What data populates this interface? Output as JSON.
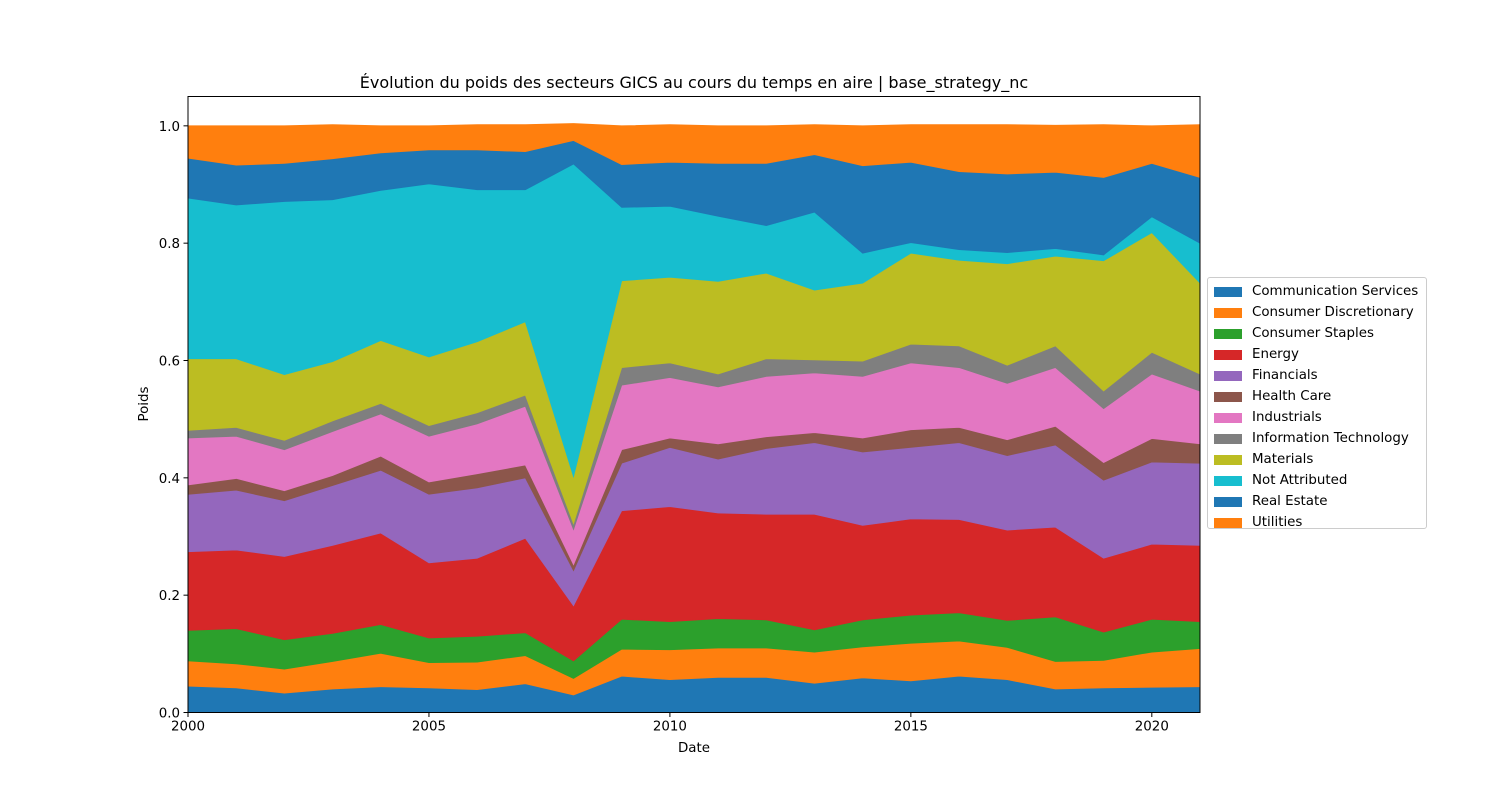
{
  "chart_data": {
    "type": "area",
    "stacked": true,
    "title": "Évolution du poids des secteurs GICS au cours du temps en aire | base_strategy_nc",
    "xlabel": "Date",
    "ylabel": "Poids",
    "xlim": [
      2000,
      2021
    ],
    "ylim": [
      0.0,
      1.05
    ],
    "xticks": [
      2000,
      2005,
      2010,
      2015,
      2020
    ],
    "xtick_labels": [
      "2000",
      "2005",
      "2010",
      "2015",
      "2020"
    ],
    "yticks": [
      0.0,
      0.2,
      0.4,
      0.6,
      0.8,
      1.0
    ],
    "ytick_labels": [
      "0.0",
      "0.2",
      "0.4",
      "0.6",
      "0.8",
      "1.0"
    ],
    "grid": false,
    "legend_position": "right, outside plot",
    "x": [
      2000,
      2001,
      2002,
      2003,
      2004,
      2005,
      2006,
      2007,
      2008,
      2009,
      2010,
      2011,
      2012,
      2013,
      2014,
      2015,
      2016,
      2017,
      2018,
      2019,
      2020,
      2021
    ],
    "series": [
      {
        "name": "Communication Services",
        "color": "#1f77b4",
        "values": [
          0.045,
          0.042,
          0.033,
          0.04,
          0.044,
          0.042,
          0.039,
          0.049,
          0.03,
          0.062,
          0.056,
          0.06,
          0.06,
          0.05,
          0.059,
          0.054,
          0.062,
          0.056,
          0.04,
          0.042,
          0.043,
          0.044
        ]
      },
      {
        "name": "Consumer Discretionary",
        "color": "#ff7f0e",
        "values": [
          0.043,
          0.041,
          0.041,
          0.047,
          0.057,
          0.043,
          0.047,
          0.048,
          0.028,
          0.046,
          0.051,
          0.05,
          0.05,
          0.053,
          0.053,
          0.064,
          0.06,
          0.055,
          0.047,
          0.047,
          0.06,
          0.065
        ]
      },
      {
        "name": "Consumer Staples",
        "color": "#2ca02c",
        "values": [
          0.052,
          0.06,
          0.05,
          0.048,
          0.049,
          0.042,
          0.044,
          0.039,
          0.03,
          0.051,
          0.048,
          0.05,
          0.048,
          0.038,
          0.046,
          0.048,
          0.048,
          0.046,
          0.076,
          0.048,
          0.056,
          0.046
        ]
      },
      {
        "name": "Energy",
        "color": "#d62728",
        "values": [
          0.134,
          0.134,
          0.142,
          0.15,
          0.156,
          0.128,
          0.133,
          0.161,
          0.094,
          0.185,
          0.196,
          0.18,
          0.18,
          0.197,
          0.161,
          0.164,
          0.159,
          0.154,
          0.153,
          0.126,
          0.128,
          0.13
        ]
      },
      {
        "name": "Financials",
        "color": "#9467bd",
        "values": [
          0.098,
          0.102,
          0.095,
          0.102,
          0.107,
          0.117,
          0.12,
          0.103,
          0.06,
          0.081,
          0.101,
          0.092,
          0.112,
          0.122,
          0.125,
          0.122,
          0.131,
          0.127,
          0.14,
          0.133,
          0.14,
          0.14
        ]
      },
      {
        "name": "Health Care",
        "color": "#8c564b",
        "values": [
          0.016,
          0.02,
          0.017,
          0.017,
          0.024,
          0.021,
          0.024,
          0.022,
          0.01,
          0.023,
          0.016,
          0.026,
          0.02,
          0.017,
          0.024,
          0.03,
          0.026,
          0.027,
          0.032,
          0.03,
          0.04,
          0.033
        ]
      },
      {
        "name": "Industrials",
        "color": "#e377c2",
        "values": [
          0.08,
          0.072,
          0.07,
          0.075,
          0.072,
          0.078,
          0.085,
          0.1,
          0.06,
          0.11,
          0.103,
          0.097,
          0.103,
          0.102,
          0.105,
          0.114,
          0.102,
          0.096,
          0.1,
          0.092,
          0.11,
          0.09
        ]
      },
      {
        "name": "Information Technology",
        "color": "#7f7f7f",
        "values": [
          0.013,
          0.015,
          0.016,
          0.018,
          0.018,
          0.018,
          0.019,
          0.019,
          0.01,
          0.03,
          0.025,
          0.022,
          0.03,
          0.022,
          0.026,
          0.032,
          0.037,
          0.031,
          0.037,
          0.03,
          0.037,
          0.029
        ]
      },
      {
        "name": "Materials",
        "color": "#bcbd22",
        "values": [
          0.122,
          0.117,
          0.112,
          0.101,
          0.107,
          0.117,
          0.121,
          0.125,
          0.08,
          0.148,
          0.146,
          0.158,
          0.146,
          0.119,
          0.133,
          0.155,
          0.146,
          0.173,
          0.153,
          0.222,
          0.204,
          0.155
        ]
      },
      {
        "name": "Not Attributed",
        "color": "#17becf",
        "values": [
          0.274,
          0.262,
          0.295,
          0.276,
          0.256,
          0.295,
          0.259,
          0.225,
          0.533,
          0.125,
          0.121,
          0.111,
          0.081,
          0.133,
          0.051,
          0.018,
          0.018,
          0.019,
          0.013,
          0.01,
          0.027,
          0.068
        ]
      },
      {
        "name": "Real Estate",
        "color": "#1f77b4",
        "values": [
          0.068,
          0.068,
          0.065,
          0.07,
          0.064,
          0.058,
          0.068,
          0.065,
          0.04,
          0.073,
          0.075,
          0.09,
          0.106,
          0.098,
          0.149,
          0.137,
          0.133,
          0.134,
          0.13,
          0.132,
          0.091,
          0.112
        ]
      },
      {
        "name": "Utilities",
        "color": "#ff7f0e",
        "values": [
          0.055,
          0.067,
          0.064,
          0.058,
          0.046,
          0.041,
          0.043,
          0.046,
          0.029,
          0.066,
          0.064,
          0.064,
          0.064,
          0.051,
          0.068,
          0.064,
          0.08,
          0.084,
          0.08,
          0.09,
          0.064,
          0.09
        ]
      }
    ]
  }
}
